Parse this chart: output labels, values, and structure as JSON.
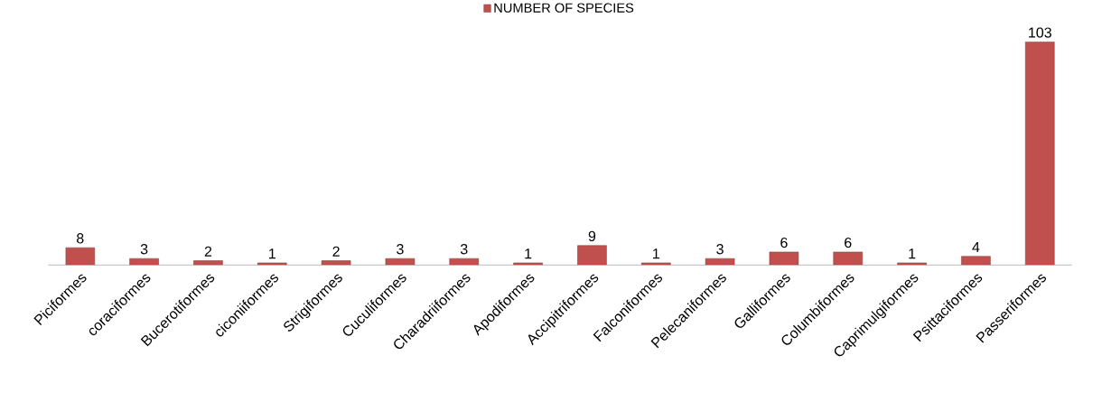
{
  "chart_data": {
    "type": "bar",
    "categories": [
      "Piciformes",
      "coraciformes",
      "Bucerotiformes",
      "ciconiiformes",
      "Strigiformes",
      "Cuculiformes",
      "Charadriiformes",
      "Apodiformes",
      "Accipitriformes",
      "Falconiformes",
      "Pelecaniformes",
      "Galliformes",
      "Columbiformes",
      "Caprimulgiformes",
      "Psittaciformes",
      "Passeriformes"
    ],
    "series": [
      {
        "name": "NUMBER OF SPECIES",
        "color": "#c0504d",
        "values": [
          8,
          3,
          2,
          1,
          2,
          3,
          3,
          1,
          9,
          1,
          3,
          6,
          6,
          1,
          4,
          103
        ]
      }
    ],
    "data_labels": true,
    "legend": "top"
  }
}
